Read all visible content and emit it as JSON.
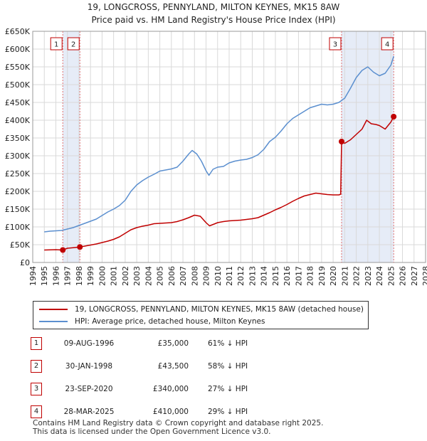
{
  "title_line1": "19, LONGCROSS, PENNYLAND, MILTON KEYNES, MK15 8AW",
  "title_line2": "Price paid vs. HM Land Registry's House Price Index (HPI)",
  "colors": {
    "red": "#c00000",
    "blue": "#5b8fcf",
    "shade": "#e6ecf7",
    "grid": "#d9d9d9",
    "vline": "#e07070"
  },
  "legend": {
    "red_label": "19, LONGCROSS, PENNYLAND, MILTON KEYNES, MK15 8AW (detached house)",
    "blue_label": "HPI: Average price, detached house, Milton Keynes"
  },
  "transactions": [
    {
      "num": "1",
      "date": "09-AUG-1996",
      "price": "£35,000",
      "hpi": "61% ↓ HPI"
    },
    {
      "num": "2",
      "date": "30-JAN-1998",
      "price": "£43,500",
      "hpi": "58% ↓ HPI"
    },
    {
      "num": "3",
      "date": "23-SEP-2020",
      "price": "£340,000",
      "hpi": "27% ↓ HPI"
    },
    {
      "num": "4",
      "date": "28-MAR-2025",
      "price": "£410,000",
      "hpi": "29% ↓ HPI"
    }
  ],
  "footer_line1": "Contains HM Land Registry data © Crown copyright and database right 2025.",
  "footer_line2": "This data is licensed under the Open Government Licence v3.0.",
  "chart_data": {
    "type": "line",
    "xlim": [
      1994,
      2028
    ],
    "ylim": [
      0,
      650000
    ],
    "x_ticks": [
      1994,
      1995,
      1996,
      1997,
      1998,
      1999,
      2000,
      2001,
      2002,
      2003,
      2004,
      2005,
      2006,
      2007,
      2008,
      2009,
      2010,
      2011,
      2012,
      2013,
      2014,
      2015,
      2016,
      2017,
      2018,
      2019,
      2020,
      2021,
      2022,
      2023,
      2024,
      2025,
      2026,
      2027,
      2028
    ],
    "y_ticks": [
      {
        "value": 0,
        "label": "£0"
      },
      {
        "value": 50000,
        "label": "£50K"
      },
      {
        "value": 100000,
        "label": "£100K"
      },
      {
        "value": 150000,
        "label": "£150K"
      },
      {
        "value": 200000,
        "label": "£200K"
      },
      {
        "value": 250000,
        "label": "£250K"
      },
      {
        "value": 300000,
        "label": "£300K"
      },
      {
        "value": 350000,
        "label": "£350K"
      },
      {
        "value": 400000,
        "label": "£400K"
      },
      {
        "value": 450000,
        "label": "£450K"
      },
      {
        "value": 500000,
        "label": "£500K"
      },
      {
        "value": 550000,
        "label": "£550K"
      },
      {
        "value": 600000,
        "label": "£600K"
      },
      {
        "value": 650000,
        "label": "£650K"
      }
    ],
    "shaded_ranges": [
      [
        1996.6,
        1998.1
      ],
      [
        2020.7,
        2025.25
      ]
    ],
    "markers": [
      {
        "label": "1",
        "x": 1996.6,
        "y": 35000
      },
      {
        "label": "2",
        "x": 1998.08,
        "y": 43500
      },
      {
        "label": "3",
        "x": 2020.73,
        "y": 340000
      },
      {
        "label": "4",
        "x": 2025.24,
        "y": 410000
      }
    ],
    "series": [
      {
        "name": "19, LONGCROSS, PENNYLAND, MILTON KEYNES, MK15 8AW (detached house)",
        "color": "#c00000",
        "x": [
          1995.0,
          1995.5,
          1996.0,
          1996.6,
          1997.0,
          1997.5,
          1998.08,
          1998.5,
          1999.0,
          1999.5,
          2000.0,
          2000.5,
          2001.0,
          2001.5,
          2002.0,
          2002.5,
          2003.0,
          2003.5,
          2004.0,
          2004.5,
          2005.0,
          2005.5,
          2006.0,
          2006.5,
          2007.0,
          2007.5,
          2008.0,
          2008.5,
          2009.0,
          2009.3,
          2009.7,
          2010.0,
          2010.5,
          2011.0,
          2011.5,
          2012.0,
          2012.5,
          2013.0,
          2013.5,
          2014.0,
          2014.5,
          2015.0,
          2015.5,
          2016.0,
          2016.5,
          2017.0,
          2017.5,
          2018.0,
          2018.5,
          2019.0,
          2019.5,
          2020.0,
          2020.5,
          2020.65,
          2020.73,
          2021.0,
          2021.5,
          2022.0,
          2022.5,
          2022.9,
          2023.3,
          2023.7,
          2024.0,
          2024.5,
          2025.0,
          2025.24
        ],
        "values": [
          35000,
          35500,
          36000,
          35000,
          40000,
          41500,
          43500,
          46000,
          49000,
          52000,
          56000,
          60000,
          65000,
          72000,
          82000,
          92000,
          98000,
          102000,
          105000,
          109000,
          110000,
          111000,
          112000,
          115000,
          120000,
          126000,
          133000,
          130000,
          112000,
          103000,
          108000,
          112000,
          115000,
          117000,
          118000,
          119000,
          121000,
          123000,
          126000,
          133000,
          140000,
          148000,
          155000,
          163000,
          172000,
          180000,
          187000,
          191000,
          195000,
          193000,
          191000,
          190000,
          190000,
          192000,
          340000,
          335000,
          345000,
          360000,
          375000,
          400000,
          390000,
          388000,
          385000,
          375000,
          395000,
          410000
        ]
      },
      {
        "name": "HPI: Average price, detached house, Milton Keynes",
        "color": "#5b8fcf",
        "x": [
          1995.0,
          1995.5,
          1996.0,
          1996.5,
          1997.0,
          1997.5,
          1998.0,
          1998.5,
          1999.0,
          1999.5,
          2000.0,
          2000.5,
          2001.0,
          2001.5,
          2002.0,
          2002.5,
          2003.0,
          2003.5,
          2004.0,
          2004.5,
          2005.0,
          2005.5,
          2006.0,
          2006.5,
          2007.0,
          2007.5,
          2007.8,
          2008.2,
          2008.6,
          2009.0,
          2009.25,
          2009.6,
          2010.0,
          2010.5,
          2011.0,
          2011.5,
          2012.0,
          2012.5,
          2013.0,
          2013.5,
          2014.0,
          2014.5,
          2015.0,
          2015.5,
          2016.0,
          2016.5,
          2017.0,
          2017.5,
          2018.0,
          2018.5,
          2019.0,
          2019.5,
          2020.0,
          2020.5,
          2021.0,
          2021.5,
          2022.0,
          2022.5,
          2023.0,
          2023.5,
          2024.0,
          2024.5,
          2025.0,
          2025.24
        ],
        "values": [
          86000,
          88000,
          89000,
          90000,
          94000,
          98000,
          104000,
          110000,
          116000,
          122000,
          132000,
          142000,
          150000,
          160000,
          175000,
          200000,
          218000,
          230000,
          240000,
          248000,
          257000,
          260000,
          263000,
          268000,
          285000,
          305000,
          315000,
          305000,
          285000,
          258000,
          245000,
          262000,
          268000,
          270000,
          280000,
          285000,
          288000,
          290000,
          295000,
          303000,
          318000,
          340000,
          352000,
          370000,
          390000,
          405000,
          415000,
          425000,
          435000,
          440000,
          445000,
          443000,
          445000,
          450000,
          462000,
          490000,
          520000,
          540000,
          550000,
          535000,
          525000,
          532000,
          555000,
          580000
        ]
      }
    ]
  }
}
